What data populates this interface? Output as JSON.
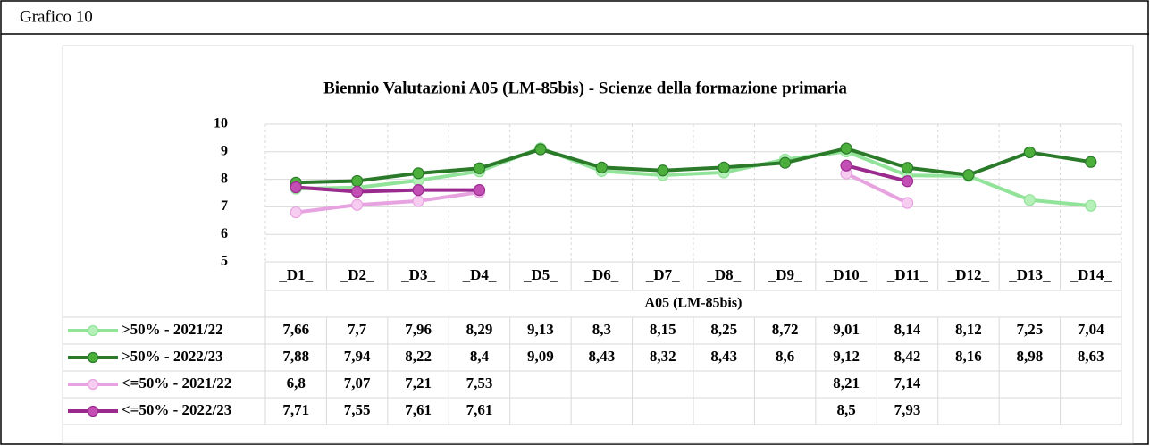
{
  "header": {
    "title": "Grafico 10"
  },
  "chart_data": {
    "type": "line",
    "title": "Biennio Valutazioni A05 (LM-85bis) - Scienze della formazione primaria",
    "x_axis_label": "A05 (LM-85bis)",
    "categories": [
      "_D1_",
      "_D2_",
      "_D3_",
      "_D4_",
      "_D5_",
      "_D6_",
      "_D7_",
      "_D8_",
      "_D9_",
      "_D10_",
      "_D11_",
      "_D12_",
      "_D13_",
      "_D14_"
    ],
    "ylim": [
      5,
      10
    ],
    "yticks": [
      5,
      6,
      7,
      8,
      9,
      10
    ],
    "grid": true,
    "series": [
      {
        "name": ">50% - 2021/22",
        "color": "#92e39a",
        "marker_color": "#b4f0b8",
        "values": [
          7.66,
          7.7,
          7.96,
          8.29,
          9.13,
          8.3,
          8.15,
          8.25,
          8.72,
          9.01,
          8.14,
          8.12,
          7.25,
          7.04
        ],
        "value_labels": [
          "7,66",
          "7,7",
          "7,96",
          "8,29",
          "9,13",
          "8,3",
          "8,15",
          "8,25",
          "8,72",
          "9,01",
          "8,14",
          "8,12",
          "7,25",
          "7,04"
        ]
      },
      {
        "name": ">50% - 2022/23",
        "color": "#2a7a2a",
        "marker_color": "#4caf3c",
        "values": [
          7.88,
          7.94,
          8.22,
          8.4,
          9.09,
          8.43,
          8.32,
          8.43,
          8.6,
          9.12,
          8.42,
          8.16,
          8.98,
          8.63
        ],
        "value_labels": [
          "7,88",
          "7,94",
          "8,22",
          "8,4",
          "9,09",
          "8,43",
          "8,32",
          "8,43",
          "8,6",
          "9,12",
          "8,42",
          "8,16",
          "8,98",
          "8,63"
        ]
      },
      {
        "name": "<=50% - 2021/22",
        "color": "#e7a2e0",
        "marker_color": "#f6cdf1",
        "values": [
          6.8,
          7.07,
          7.21,
          7.53,
          null,
          null,
          null,
          null,
          null,
          8.21,
          7.14,
          null,
          null,
          null
        ],
        "value_labels": [
          "6,8",
          "7,07",
          "7,21",
          "7,53",
          null,
          null,
          null,
          null,
          null,
          "8,21",
          "7,14",
          null,
          null,
          null
        ]
      },
      {
        "name": "<=50% - 2022/23",
        "color": "#9a2a8e",
        "marker_color": "#c34fb5",
        "values": [
          7.71,
          7.55,
          7.61,
          7.61,
          null,
          null,
          null,
          null,
          null,
          8.5,
          7.93,
          null,
          null,
          null
        ],
        "value_labels": [
          "7,71",
          "7,55",
          "7,61",
          "7,61",
          null,
          null,
          null,
          null,
          null,
          "8,5",
          "7,93",
          null,
          null,
          null
        ]
      }
    ]
  }
}
